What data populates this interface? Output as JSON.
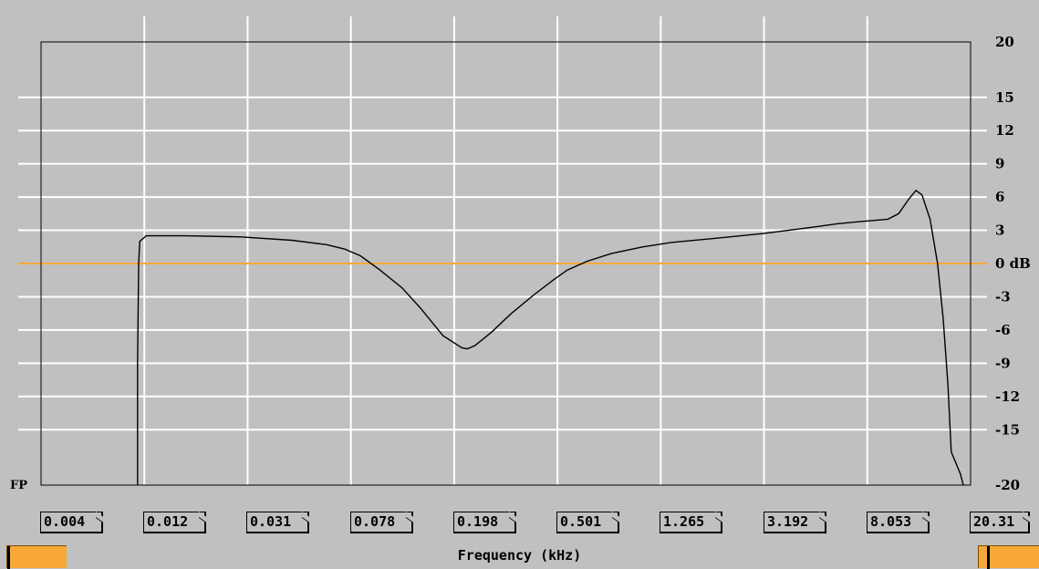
{
  "chart_data": {
    "type": "line",
    "title": "",
    "xlabel": "Frequency (kHz)",
    "ylabel": "",
    "y_unit_label": "dB",
    "corner_label": "FP",
    "x_scale": "log",
    "xlim": [
      0.004,
      20.31
    ],
    "ylim": [
      -20,
      20
    ],
    "grid": true,
    "x_tick_labels": [
      "0.004",
      "0.012",
      "0.031",
      "0.078",
      "0.198",
      "0.501",
      "1.265",
      "3.192",
      "8.053",
      "20.31"
    ],
    "y_ticks": [
      20,
      15,
      12,
      9,
      6,
      3,
      0,
      -3,
      -6,
      -9,
      -12,
      -15,
      -20
    ],
    "reference_line": {
      "y": 0,
      "color": "#f7a838"
    },
    "line_color": "#000000",
    "series": [
      {
        "x": [
          0.0097,
          0.0097,
          0.0098,
          0.0099,
          0.0105,
          0.015,
          0.025,
          0.04,
          0.055,
          0.065,
          0.075,
          0.09,
          0.11,
          0.13,
          0.16,
          0.19,
          0.2,
          0.215,
          0.25,
          0.3,
          0.37,
          0.44,
          0.5,
          0.6,
          0.75,
          1.0,
          1.3,
          2.0,
          3.0,
          4.5,
          6.0,
          7.5,
          8.5,
          9.5,
          10.5,
          11.5,
          12.3,
          13.0,
          14.0,
          15.0,
          15.8,
          16.5,
          17.0,
          18.5,
          19.0
        ],
        "y": [
          -20,
          -9,
          0,
          2,
          2.5,
          2.5,
          2.4,
          2.1,
          1.7,
          1.3,
          0.7,
          -0.6,
          -2.2,
          -4.0,
          -6.5,
          -7.6,
          -7.7,
          -7.4,
          -6.2,
          -4.5,
          -2.8,
          -1.5,
          -0.6,
          0.2,
          0.9,
          1.5,
          1.9,
          2.3,
          2.7,
          3.2,
          3.6,
          3.8,
          3.9,
          4.0,
          4.5,
          5.8,
          6.6,
          6.2,
          4.0,
          0.0,
          -5.0,
          -11.0,
          -17.0,
          -19.0,
          -20.0
        ]
      }
    ]
  }
}
